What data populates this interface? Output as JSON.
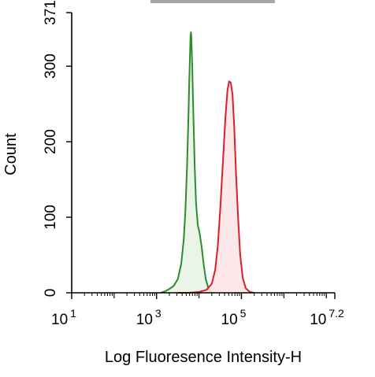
{
  "chart_data": {
    "type": "area",
    "xlabel": "Log Fluoresence Intensity-H",
    "ylabel": "Count",
    "xscale": "log",
    "xlim": [
      1,
      7.2
    ],
    "ylim": [
      0,
      371
    ],
    "x_ticks": [
      {
        "base": "10",
        "exp": "1",
        "value": 1
      },
      {
        "base": "10",
        "exp": "3",
        "value": 3
      },
      {
        "base": "10",
        "exp": "5",
        "value": 5
      },
      {
        "base": "10",
        "exp": "7.2",
        "value": 7.2
      }
    ],
    "y_ticks": [
      "0",
      "100",
      "200",
      "300",
      "371"
    ],
    "grid": false,
    "series": [
      {
        "color": "#2e8b2e",
        "fill": "#e8f3e3",
        "points": [
          [
            3.1,
            0
          ],
          [
            3.2,
            2
          ],
          [
            3.3,
            5
          ],
          [
            3.4,
            9
          ],
          [
            3.5,
            18
          ],
          [
            3.58,
            38
          ],
          [
            3.64,
            70
          ],
          [
            3.68,
            110
          ],
          [
            3.72,
            170
          ],
          [
            3.75,
            230
          ],
          [
            3.77,
            280
          ],
          [
            3.79,
            320
          ],
          [
            3.8,
            340
          ],
          [
            3.81,
            345
          ],
          [
            3.82,
            338
          ],
          [
            3.84,
            300
          ],
          [
            3.87,
            230
          ],
          [
            3.9,
            165
          ],
          [
            3.93,
            120
          ],
          [
            3.97,
            90
          ],
          [
            4.01,
            80
          ],
          [
            4.06,
            62
          ],
          [
            4.11,
            38
          ],
          [
            4.16,
            18
          ],
          [
            4.22,
            6
          ],
          [
            4.28,
            1
          ],
          [
            4.35,
            0
          ]
        ]
      },
      {
        "color": "#d8202a",
        "fill": "#fbe3e6",
        "points": [
          [
            3.5,
            0
          ],
          [
            3.75,
            0
          ],
          [
            4.0,
            1
          ],
          [
            4.18,
            4
          ],
          [
            4.3,
            12
          ],
          [
            4.38,
            30
          ],
          [
            4.44,
            60
          ],
          [
            4.5,
            110
          ],
          [
            4.56,
            170
          ],
          [
            4.62,
            230
          ],
          [
            4.67,
            268
          ],
          [
            4.71,
            280
          ],
          [
            4.75,
            278
          ],
          [
            4.79,
            262
          ],
          [
            4.83,
            220
          ],
          [
            4.87,
            160
          ],
          [
            4.92,
            100
          ],
          [
            4.97,
            50
          ],
          [
            5.03,
            20
          ],
          [
            5.1,
            6
          ],
          [
            5.2,
            1
          ],
          [
            5.3,
            0
          ]
        ]
      }
    ]
  },
  "legend_bar_color": "#a6a6a6"
}
